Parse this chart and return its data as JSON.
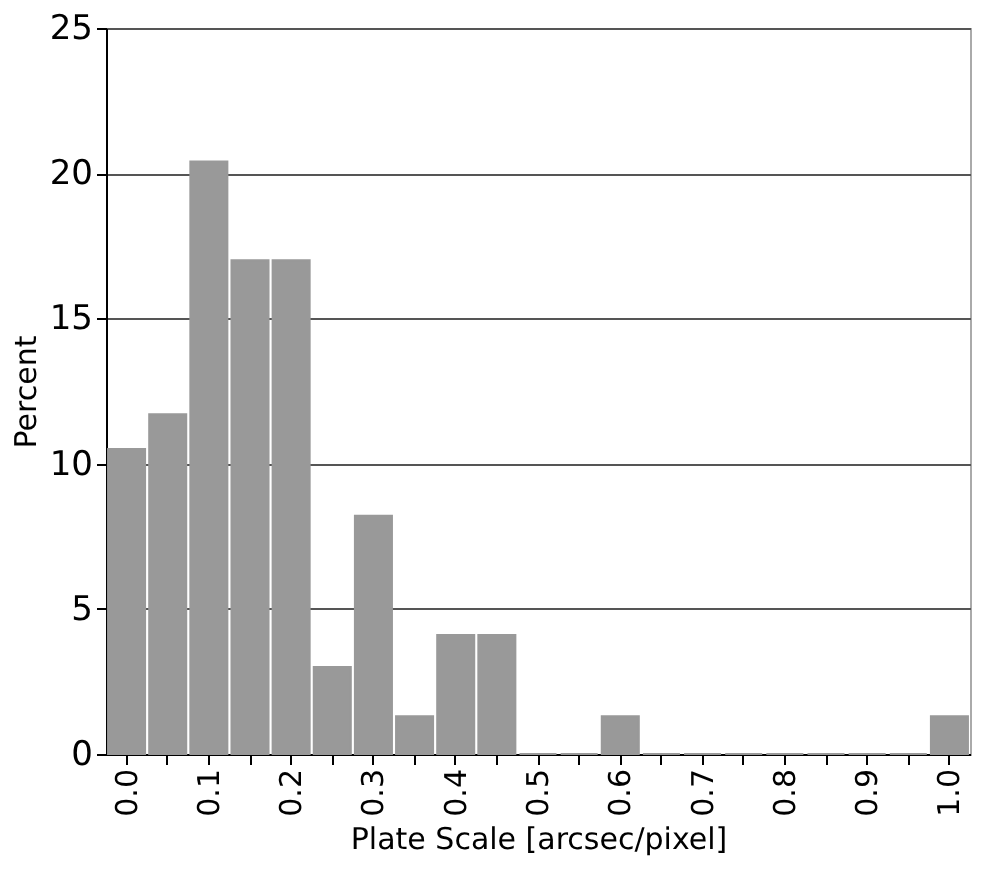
{
  "chart_data": {
    "type": "bar",
    "xlabel": "Plate Scale [arcsec/pixel]",
    "ylabel": "Percent",
    "categories": [
      "0.0",
      null,
      "0.1",
      null,
      "0.2",
      null,
      "0.3",
      null,
      "0.4",
      null,
      "0.5",
      null,
      "0.6",
      null,
      "0.7",
      null,
      "0.8",
      null,
      "0.9",
      null,
      "1.0"
    ],
    "values": [
      10.5,
      11.7,
      20.4,
      17,
      17,
      3,
      8.2,
      1.3,
      4.1,
      4.1,
      0,
      0,
      1.3,
      0,
      0,
      0,
      0,
      0,
      0,
      0,
      1.3
    ],
    "color": "#999999",
    "ylim": [
      0,
      25
    ],
    "yticks": [
      0,
      5,
      10,
      15,
      20,
      25
    ],
    "grid": "y"
  }
}
